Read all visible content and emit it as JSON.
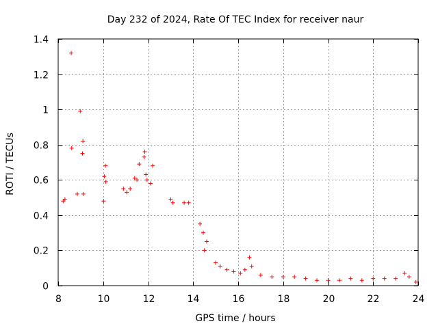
{
  "chart_data": {
    "type": "scatter",
    "title": "Day 232 of 2024, Rate Of TEC Index for receiver naur",
    "xlabel": "GPS time / hours",
    "ylabel": "ROTI / TECUs",
    "xlim": [
      8,
      24
    ],
    "ylim": [
      0,
      1.4
    ],
    "xticks": [
      8,
      10,
      12,
      14,
      16,
      18,
      20,
      22,
      24
    ],
    "yticks": [
      0,
      0.2,
      0.4,
      0.6,
      0.8,
      1,
      1.2,
      1.4
    ],
    "xtick_labels": [
      "8",
      "10",
      "12",
      "14",
      "16",
      "18",
      "20",
      "22",
      "24"
    ],
    "ytick_labels": [
      "0",
      "0.2",
      "0.4",
      "0.6",
      "0.8",
      "1",
      "1.2",
      "1.4"
    ],
    "grid": true,
    "marker": "+",
    "color": "#ff0000",
    "series": [
      {
        "name": "ROTI",
        "points": [
          [
            8.58,
            1.32
          ],
          [
            8.98,
            0.99
          ],
          [
            9.1,
            0.82
          ],
          [
            9.08,
            0.75
          ],
          [
            8.6,
            0.78
          ],
          [
            8.85,
            0.52
          ],
          [
            9.12,
            0.52
          ],
          [
            8.3,
            0.49
          ],
          [
            8.22,
            0.48
          ],
          [
            10.1,
            0.68
          ],
          [
            10.05,
            0.62
          ],
          [
            10.12,
            0.59
          ],
          [
            10.02,
            0.48
          ],
          [
            11.85,
            0.76
          ],
          [
            11.82,
            0.73
          ],
          [
            11.6,
            0.69
          ],
          [
            12.2,
            0.68
          ],
          [
            11.9,
            0.63
          ],
          [
            11.95,
            0.6
          ],
          [
            12.1,
            0.58
          ],
          [
            11.4,
            0.61
          ],
          [
            11.5,
            0.6
          ],
          [
            11.2,
            0.55
          ],
          [
            11.05,
            0.53
          ],
          [
            10.9,
            0.55
          ],
          [
            13.0,
            0.49
          ],
          [
            13.1,
            0.47
          ],
          [
            13.6,
            0.47
          ],
          [
            13.8,
            0.47
          ],
          [
            14.3,
            0.35
          ],
          [
            14.45,
            0.3
          ],
          [
            14.6,
            0.25
          ],
          [
            14.5,
            0.2
          ],
          [
            15.0,
            0.13
          ],
          [
            15.2,
            0.11
          ],
          [
            15.5,
            0.09
          ],
          [
            15.8,
            0.08
          ],
          [
            16.1,
            0.07
          ],
          [
            16.3,
            0.09
          ],
          [
            16.5,
            0.16
          ],
          [
            16.6,
            0.11
          ],
          [
            17.0,
            0.06
          ],
          [
            17.5,
            0.05
          ],
          [
            18.0,
            0.05
          ],
          [
            18.5,
            0.05
          ],
          [
            19.0,
            0.04
          ],
          [
            19.5,
            0.03
          ],
          [
            20.0,
            0.03
          ],
          [
            20.5,
            0.03
          ],
          [
            21.0,
            0.04
          ],
          [
            21.5,
            0.03
          ],
          [
            22.0,
            0.04
          ],
          [
            22.5,
            0.04
          ],
          [
            23.0,
            0.04
          ],
          [
            23.4,
            0.07
          ],
          [
            23.6,
            0.05
          ],
          [
            23.9,
            0.02
          ]
        ]
      }
    ]
  }
}
